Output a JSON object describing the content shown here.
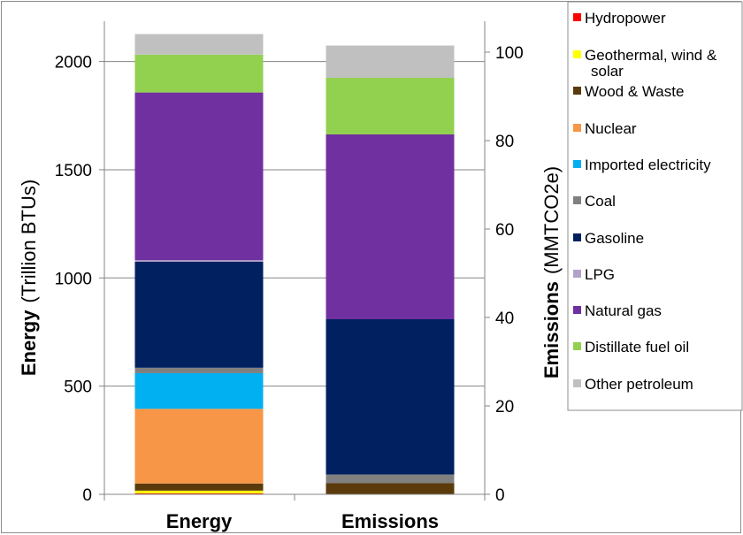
{
  "chart_data": {
    "type": "bar",
    "stacked": true,
    "categories": [
      "Energy",
      "Emissions"
    ],
    "y_left": {
      "label_bold": "Energy",
      "label_unit": "(Trillion BTUs)",
      "lim": [
        0,
        2200
      ],
      "ticks": [
        "0",
        "500",
        "1000",
        "1500",
        "2000"
      ]
    },
    "y_right": {
      "label_bold": "Emissions",
      "label_unit": "(MMTCO2e)",
      "lim": [
        0,
        105
      ],
      "ticks": [
        "0",
        "20",
        "40",
        "60",
        "80",
        "100"
      ]
    },
    "grid": true,
    "legend_position": "top-right",
    "series": [
      {
        "name": "Hydropower",
        "color": "#ff0000",
        "energy": 5,
        "emissions": 0
      },
      {
        "name": "Geothermal, wind & solar",
        "color": "#ffff00",
        "energy": 12,
        "emissions": 0
      },
      {
        "name": "Wood & Waste",
        "color": "#5b3a0b",
        "energy": 33,
        "emissions": 2.5
      },
      {
        "name": "Nuclear",
        "color": "#f79646",
        "energy": 345,
        "emissions": 0
      },
      {
        "name": "Imported electricity",
        "color": "#00b0f0",
        "energy": 165,
        "emissions": 0
      },
      {
        "name": "Coal",
        "color": "#808080",
        "energy": 25,
        "emissions": 2.0
      },
      {
        "name": "Gasoline",
        "color": "#002060",
        "energy": 490,
        "emissions": 35.1
      },
      {
        "name": "LPG",
        "color": "#b3a2c7",
        "energy": 7,
        "emissions": 0
      },
      {
        "name": "Natural gas",
        "color": "#7030a0",
        "energy": 775,
        "emissions": 41.8
      },
      {
        "name": "Distillate fuel oil",
        "color": "#92d050",
        "energy": 175,
        "emissions": 12.8
      },
      {
        "name": "Other petroleum",
        "color": "#c0c0c0",
        "energy": 95,
        "emissions": 7.3
      }
    ]
  }
}
